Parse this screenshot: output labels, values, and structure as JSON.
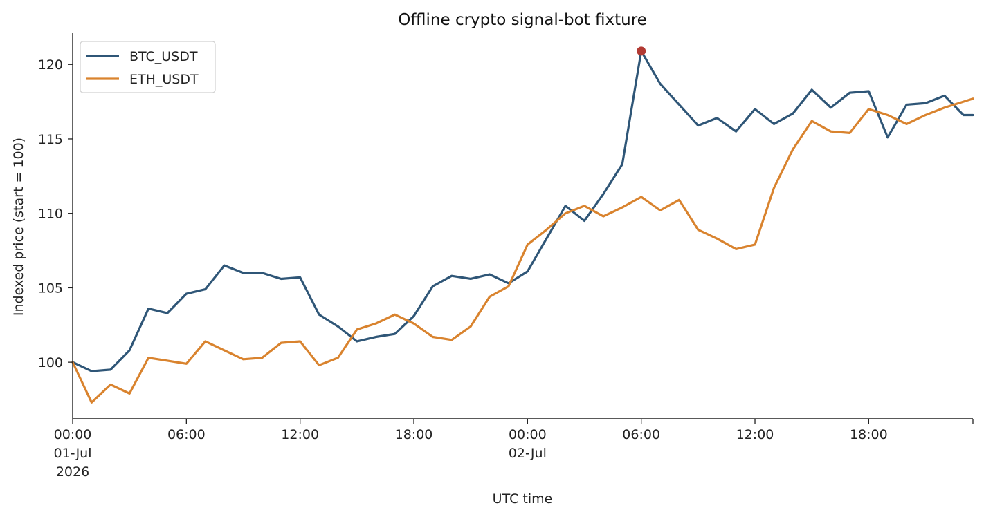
{
  "chart_data": {
    "type": "line",
    "title": "Offline crypto signal-bot fixture",
    "xlabel": "UTC time",
    "ylabel": "Indexed price (start = 100)",
    "xlim": [
      "2026-07-01 00:00",
      "2026-07-02 23:30"
    ],
    "ylim": [
      96.2,
      122.1
    ],
    "yticks": [
      100,
      105,
      110,
      115,
      120
    ],
    "xticks": [
      {
        "x": "2026-07-01 00:00",
        "lines": [
          "00:00",
          "01-Jul",
          "2026"
        ]
      },
      {
        "x": "2026-07-01 06:00",
        "lines": [
          "06:00"
        ]
      },
      {
        "x": "2026-07-01 12:00",
        "lines": [
          "12:00"
        ]
      },
      {
        "x": "2026-07-01 18:00",
        "lines": [
          "18:00"
        ]
      },
      {
        "x": "2026-07-02 00:00",
        "lines": [
          "00:00",
          "02-Jul"
        ]
      },
      {
        "x": "2026-07-02 06:00",
        "lines": [
          "06:00"
        ]
      },
      {
        "x": "2026-07-02 12:00",
        "lines": [
          "12:00"
        ]
      },
      {
        "x": "2026-07-02 18:00",
        "lines": [
          "18:00"
        ]
      }
    ],
    "grid": false,
    "legend_position": "top-left",
    "x": [
      "2026-07-01 00:00",
      "2026-07-01 01:00",
      "2026-07-01 02:00",
      "2026-07-01 03:00",
      "2026-07-01 04:00",
      "2026-07-01 05:00",
      "2026-07-01 06:00",
      "2026-07-01 07:00",
      "2026-07-01 08:00",
      "2026-07-01 09:00",
      "2026-07-01 10:00",
      "2026-07-01 11:00",
      "2026-07-01 12:00",
      "2026-07-01 13:00",
      "2026-07-01 14:00",
      "2026-07-01 15:00",
      "2026-07-01 16:00",
      "2026-07-01 17:00",
      "2026-07-01 18:00",
      "2026-07-01 19:00",
      "2026-07-01 20:00",
      "2026-07-01 21:00",
      "2026-07-01 22:00",
      "2026-07-01 23:00",
      "2026-07-02 00:00",
      "2026-07-02 01:00",
      "2026-07-02 02:00",
      "2026-07-02 03:00",
      "2026-07-02 04:00",
      "2026-07-02 05:00",
      "2026-07-02 06:00",
      "2026-07-02 07:00",
      "2026-07-02 08:00",
      "2026-07-02 09:00",
      "2026-07-02 10:00",
      "2026-07-02 11:00",
      "2026-07-02 12:00",
      "2026-07-02 13:00",
      "2026-07-02 14:00",
      "2026-07-02 15:00",
      "2026-07-02 16:00",
      "2026-07-02 17:00",
      "2026-07-02 18:00",
      "2026-07-02 19:00",
      "2026-07-02 20:00",
      "2026-07-02 21:00",
      "2026-07-02 22:00",
      "2026-07-02 23:00",
      "2026-07-02 23:30"
    ],
    "series": [
      {
        "name": "BTC_USDT",
        "color": "#2f5677",
        "values": [
          100.0,
          99.4,
          99.5,
          100.8,
          103.6,
          103.3,
          104.6,
          104.9,
          106.5,
          106.0,
          106.0,
          105.6,
          105.7,
          103.2,
          102.4,
          101.4,
          101.7,
          101.9,
          103.1,
          105.1,
          105.8,
          105.6,
          105.9,
          105.3,
          106.1,
          108.3,
          110.5,
          109.5,
          111.3,
          113.3,
          120.9,
          118.7,
          117.3,
          115.9,
          116.4,
          115.5,
          117.0,
          116.0,
          116.7,
          118.3,
          117.1,
          118.1,
          118.2,
          115.1,
          117.3,
          117.4,
          117.9,
          116.6,
          116.6
        ]
      },
      {
        "name": "ETH_USDT",
        "color": "#d9832e",
        "values": [
          100.0,
          97.3,
          98.5,
          97.9,
          100.3,
          100.1,
          99.9,
          101.4,
          100.8,
          100.2,
          100.3,
          101.3,
          101.4,
          99.8,
          100.3,
          102.2,
          102.6,
          103.2,
          102.6,
          101.7,
          101.5,
          102.4,
          104.4,
          105.1,
          107.9,
          108.9,
          110.0,
          110.5,
          109.8,
          110.4,
          111.1,
          110.2,
          110.9,
          108.9,
          108.3,
          107.6,
          107.9,
          111.7,
          114.3,
          116.2,
          115.5,
          115.4,
          117.0,
          116.6,
          116.0,
          116.6,
          117.1,
          117.5,
          117.7
        ]
      }
    ],
    "annotations": [
      {
        "type": "marker",
        "x": "2026-07-02 06:00",
        "y": 120.9,
        "color": "#b23a33"
      }
    ]
  }
}
